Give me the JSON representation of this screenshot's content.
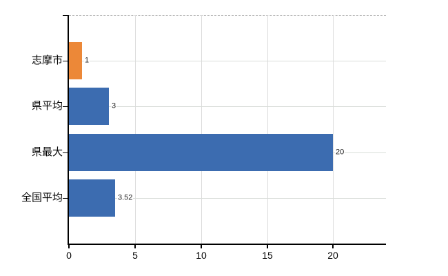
{
  "chart_data": {
    "type": "bar",
    "orientation": "horizontal",
    "title": "",
    "categories": [
      "志摩市",
      "県平均",
      "県最大",
      "全国平均"
    ],
    "values": [
      1,
      3,
      20,
      3.52
    ],
    "value_labels": [
      "1",
      "3",
      "20",
      "3.52"
    ],
    "series_colors": [
      "#ec8838",
      "#3c6cb0",
      "#3c6cb0",
      "#3c6cb0"
    ],
    "x_ticks": [
      0,
      5,
      10,
      15,
      20
    ],
    "x_tick_labels": [
      "0",
      "5",
      "10",
      "15",
      "20"
    ],
    "xlim": [
      0,
      24
    ],
    "grid": true,
    "legend": false
  },
  "style": {
    "background": "#ffffff",
    "axis_color": "#000000",
    "vertical_grid_color": "#dcdcdc",
    "horizontal_grid_color": "#d9ddd9",
    "top_border_color": "#bababa",
    "bar_orange": "#ec8838",
    "bar_blue": "#3c6cb0",
    "category_label_color": "#000000",
    "value_label_color": "#222222"
  }
}
